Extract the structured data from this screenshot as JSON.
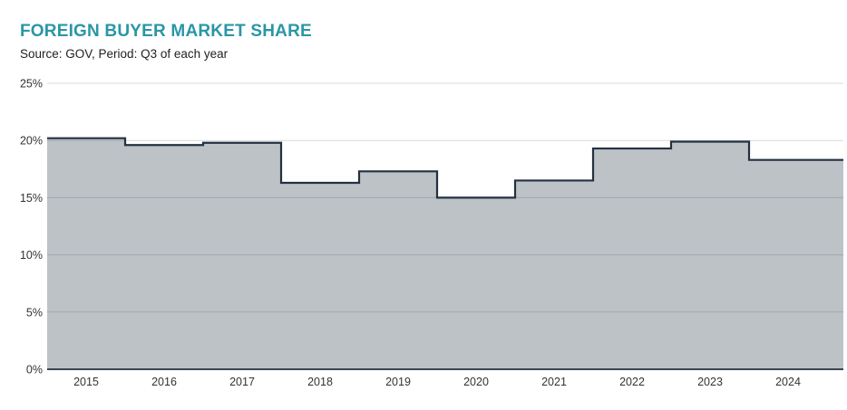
{
  "header": {
    "title": "FOREIGN BUYER MARKET SHARE",
    "subtitle": "Source: GOV, Period: Q3 of each year"
  },
  "colors": {
    "title_accent": "#2a96a6",
    "series_line": "#233140",
    "series_fill": "rgba(37,52,70,0.30)",
    "gridline": "#d9d9d9",
    "axis_line": "#233140",
    "tick_text": "#333333"
  },
  "chart_data": {
    "type": "area",
    "step": "mid",
    "title": "FOREIGN BUYER MARKET SHARE",
    "source": "Source: GOV, Period: Q3 of each year",
    "x": [
      "2015",
      "2016",
      "2017",
      "2018",
      "2019",
      "2020",
      "2021",
      "2022",
      "2023",
      "2024"
    ],
    "values": [
      20.2,
      19.6,
      19.8,
      16.3,
      17.3,
      15.0,
      16.5,
      19.3,
      19.9,
      18.3
    ],
    "unit": "%",
    "xlabel": "",
    "ylabel": "",
    "ylim": [
      0,
      25
    ],
    "ytick_step": 5,
    "yticks": [
      "0%",
      "5%",
      "10%",
      "15%",
      "20%",
      "25%"
    ],
    "grid": true,
    "legend": false
  }
}
